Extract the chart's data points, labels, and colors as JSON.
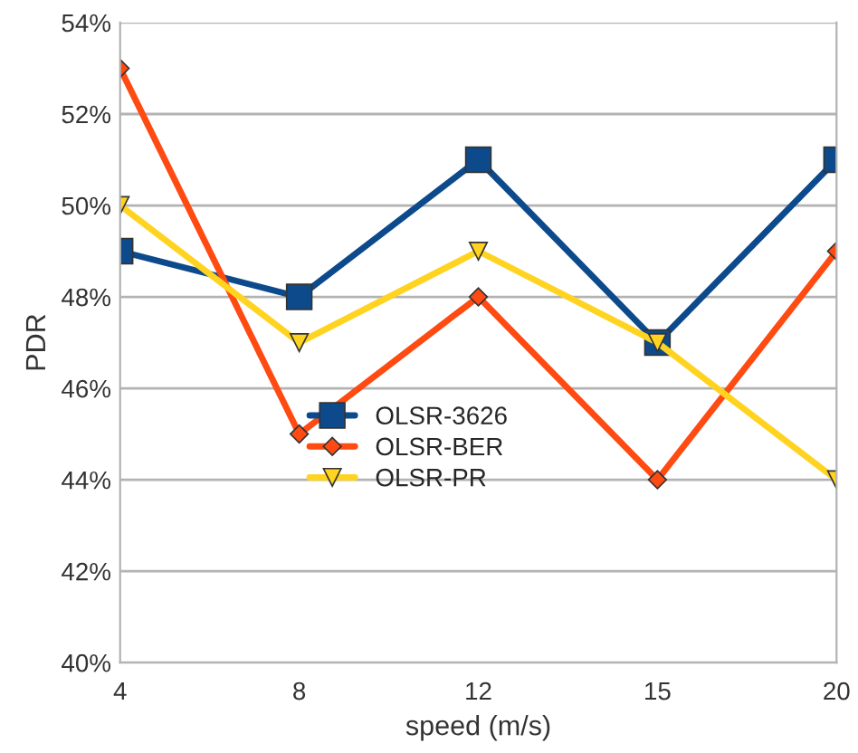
{
  "chart_data": {
    "type": "line",
    "xlabel": "speed (m/s)",
    "ylabel": "PDR",
    "categories": [
      "4",
      "8",
      "12",
      "15",
      "20"
    ],
    "series": [
      {
        "name": "OLSR-3626",
        "color": "#0d4a8c",
        "marker": "square",
        "values": [
          49,
          48,
          51,
          47,
          51
        ]
      },
      {
        "name": "OLSR-BER",
        "color": "#ff4a12",
        "marker": "diamond",
        "values": [
          53,
          45,
          48,
          44,
          49
        ]
      },
      {
        "name": "OLSR-PR",
        "color": "#ffd320",
        "marker": "triangle",
        "values": [
          50,
          47,
          49,
          47,
          44
        ]
      }
    ],
    "ylim": [
      40,
      54
    ],
    "yticks": [
      {
        "value": 40,
        "label": "40%"
      },
      {
        "value": 42,
        "label": "42%"
      },
      {
        "value": 44,
        "label": "44%"
      },
      {
        "value": 46,
        "label": "46%"
      },
      {
        "value": 48,
        "label": "48%"
      },
      {
        "value": 50,
        "label": "50%"
      },
      {
        "value": 52,
        "label": "52%"
      },
      {
        "value": 54,
        "label": "54%"
      }
    ],
    "grid": "y",
    "legend": "bottom left",
    "line_style": "solid"
  }
}
